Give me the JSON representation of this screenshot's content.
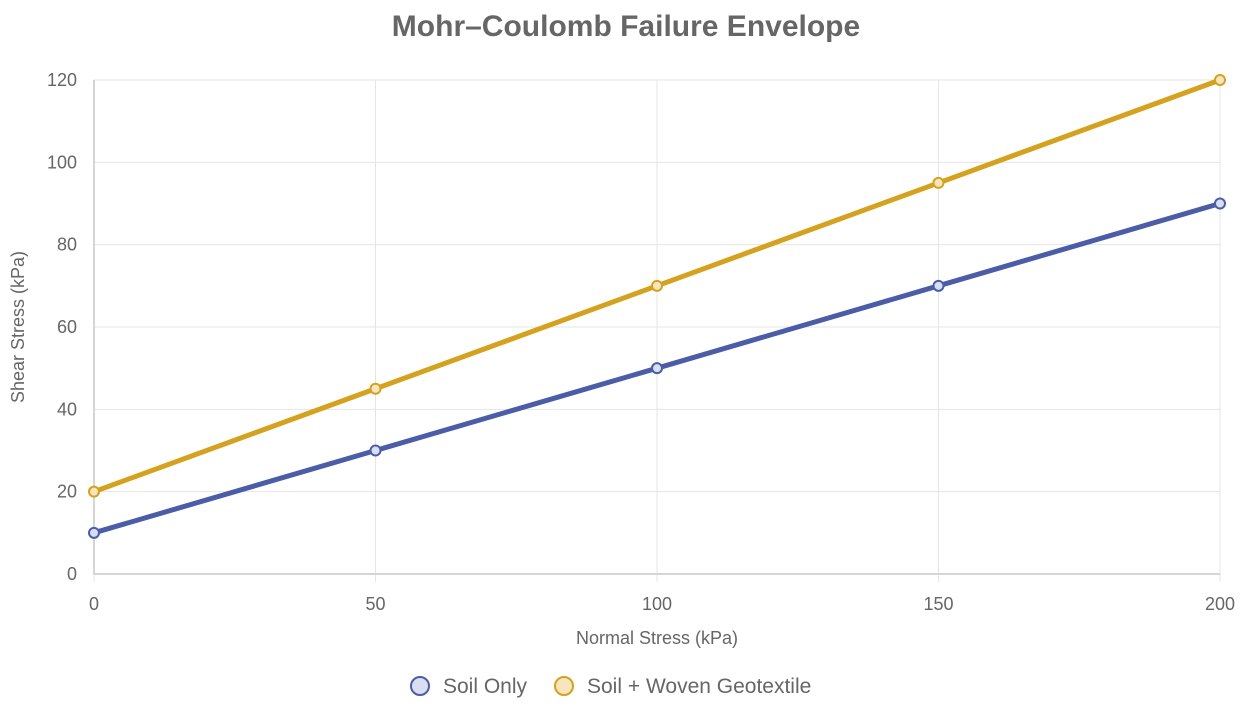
{
  "chart_data": {
    "type": "line",
    "title": "Mohr–Coulomb Failure Envelope",
    "xlabel": "Normal Stress (kPa)",
    "ylabel": "Shear Stress (kPa)",
    "x": [
      0,
      50,
      100,
      150,
      200
    ],
    "xlim": [
      0,
      200
    ],
    "ylim": [
      0,
      120
    ],
    "x_ticks": [
      0,
      50,
      100,
      150,
      200
    ],
    "y_ticks": [
      0,
      20,
      40,
      60,
      80,
      100,
      120
    ],
    "grid": true,
    "legend_position": "bottom",
    "series": [
      {
        "name": "Soil Only",
        "values": [
          10,
          30,
          50,
          70,
          90
        ],
        "color": "#4a5da6",
        "fill": "#d9def1"
      },
      {
        "name": "Soil + Woven Geotextile",
        "values": [
          20,
          45,
          70,
          95,
          120
        ],
        "color": "#d4a21e",
        "fill": "#f7e6bd"
      }
    ]
  }
}
